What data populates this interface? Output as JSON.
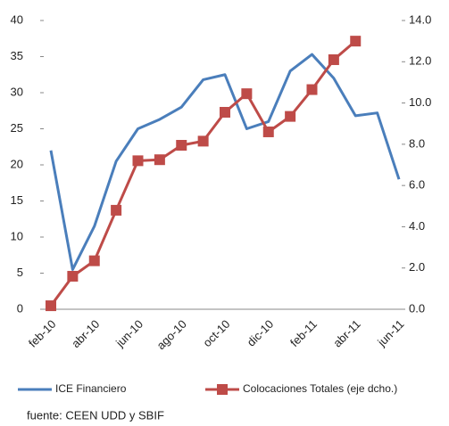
{
  "chart_data": {
    "type": "line",
    "categories": [
      "feb-10",
      null,
      "abr-10",
      null,
      "jun-10",
      null,
      "ago-10",
      null,
      "oct-10",
      null,
      "dic-10",
      null,
      "feb-11",
      null,
      "abr-11",
      null,
      "jun-11"
    ],
    "series": [
      {
        "name": "ICE Financiero",
        "color": "#4a7ebb",
        "axis": "y",
        "values": [
          22,
          5.5,
          11.5,
          20.5,
          25,
          26.3,
          28,
          31.8,
          32.5,
          25,
          26,
          33,
          35.3,
          32,
          26.8,
          27.2,
          18
        ]
      },
      {
        "name": "Colocaciones Totales (eje dcho.)",
        "color": "#be4b48",
        "axis": "y2",
        "marker": "square",
        "values": [
          0.17,
          1.6,
          2.35,
          4.8,
          7.2,
          7.25,
          7.95,
          8.15,
          9.55,
          10.45,
          8.6,
          9.35,
          10.65,
          12.1,
          13.0,
          null,
          null
        ]
      }
    ],
    "ylim": [
      0,
      40
    ],
    "yticks": [
      0,
      5,
      10,
      15,
      20,
      25,
      30,
      35,
      40
    ],
    "y2lim": [
      0,
      14
    ],
    "y2ticks": [
      {
        "value": 0,
        "label": "0.0"
      },
      {
        "value": 2,
        "label": "2.0"
      },
      {
        "value": 4,
        "label": "4.0"
      },
      {
        "value": 6,
        "label": "6.0"
      },
      {
        "value": 8,
        "label": "8.0"
      },
      {
        "value": 10,
        "label": "10.0"
      },
      {
        "value": 12,
        "label": "12.0"
      },
      {
        "value": 14,
        "label": "14.0"
      }
    ],
    "grid": false,
    "source": "fuente: CEEN UDD y SBIF"
  }
}
